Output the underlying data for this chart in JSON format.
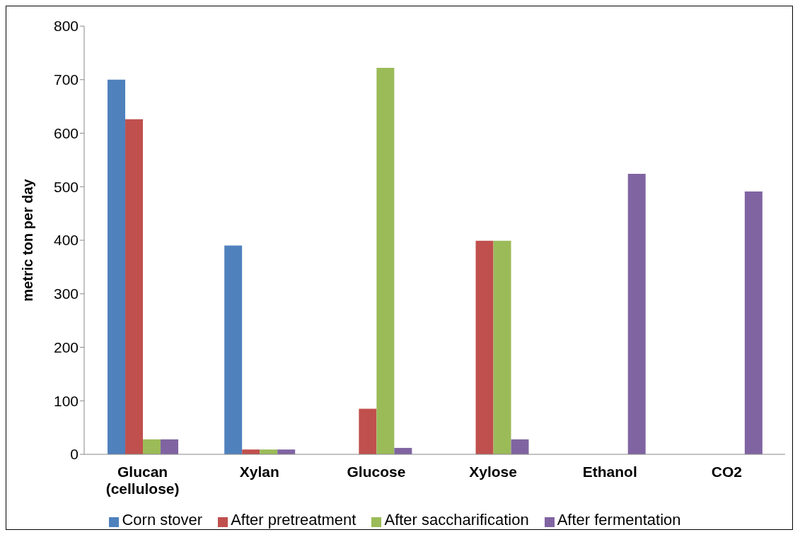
{
  "chart_data": {
    "type": "bar",
    "ylabel": "metric ton per day",
    "categories": [
      "Glucan (cellulose)",
      "Xylan",
      "Glucose",
      "Xylose",
      "Ethanol",
      "CO2"
    ],
    "series": [
      {
        "name": "Corn stover",
        "color": "#4f81bd",
        "values": [
          700,
          390,
          0,
          0,
          0,
          0
        ]
      },
      {
        "name": "After pretreatment",
        "color": "#c0504d",
        "values": [
          626,
          9,
          85,
          399,
          0,
          0
        ]
      },
      {
        "name": "After saccharification",
        "color": "#9bbb59",
        "values": [
          28,
          9,
          722,
          399,
          0,
          0
        ]
      },
      {
        "name": "After fermentation",
        "color": "#8064a2",
        "values": [
          28,
          9,
          12,
          28,
          524,
          491
        ]
      }
    ],
    "ylim": [
      0,
      800
    ],
    "yticks": [
      0,
      100,
      200,
      300,
      400,
      500,
      600,
      700,
      800
    ],
    "grid": false,
    "legend": "bottom"
  }
}
